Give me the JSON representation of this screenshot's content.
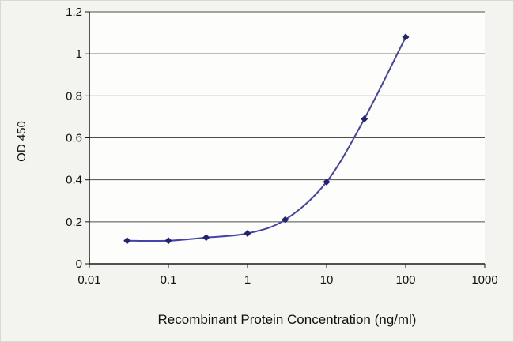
{
  "chart_data": {
    "type": "line",
    "title": "",
    "xlabel": "Recombinant Protein Concentration (ng/ml)",
    "ylabel": "OD 450",
    "x_scale": "log",
    "x": [
      0.03,
      0.1,
      0.3,
      1,
      3,
      10,
      30,
      100
    ],
    "y": [
      0.11,
      0.11,
      0.125,
      0.145,
      0.21,
      0.39,
      0.69,
      1.08
    ],
    "xlim": [
      0.01,
      1000
    ],
    "ylim": [
      0,
      1.2
    ],
    "x_ticks": [
      0.01,
      0.1,
      1,
      10,
      100,
      1000
    ],
    "x_tick_labels": [
      "0.01",
      "0.1",
      "1",
      "10",
      "100",
      "1000"
    ],
    "y_ticks": [
      0,
      0.2,
      0.4,
      0.6,
      0.8,
      1,
      1.2
    ],
    "y_tick_labels": [
      "0",
      "0.2",
      "0.4",
      "0.6",
      "0.8",
      "1",
      "1.2"
    ],
    "grid": "horizontal",
    "legend": "none",
    "marker": "diamond",
    "line_color": "#4343a8",
    "marker_color": "#23236e",
    "grid_color": "#4d4d4d",
    "axis_color": "#1a1a1a",
    "background": "#f3f3ef",
    "plot_background": "#fdfdfb"
  }
}
